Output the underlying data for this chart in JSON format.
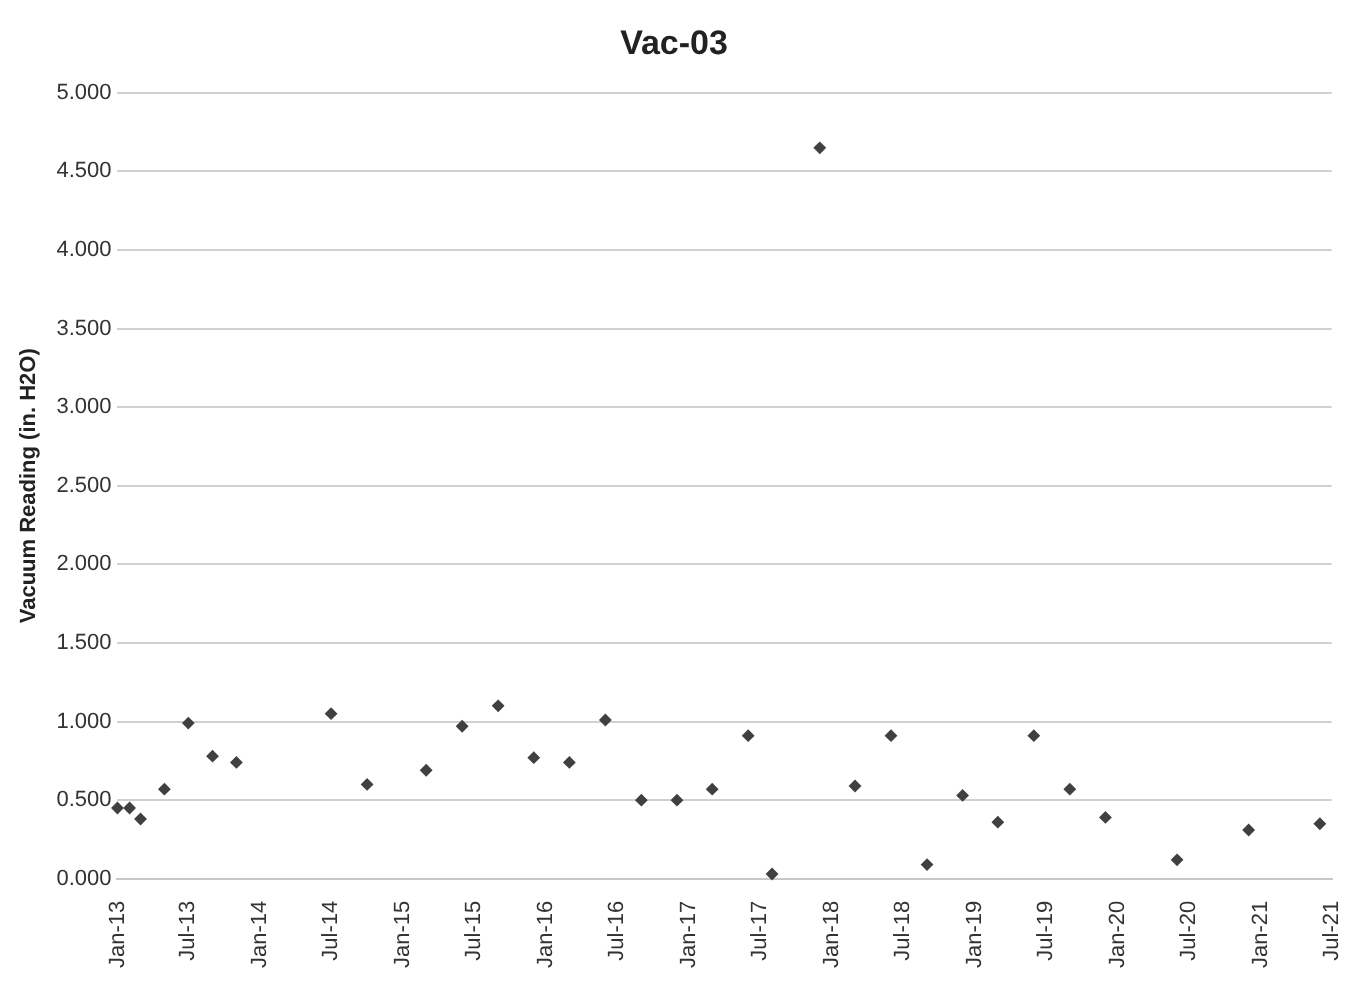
{
  "chart_data": {
    "type": "scatter",
    "title": "Vac-03",
    "ylabel": "Vacuum Reading (in. H2O)",
    "x": [
      "2013-01",
      "2013-02",
      "2013-03",
      "2013-05",
      "2013-07",
      "2013-09",
      "2013-11",
      "2014-07",
      "2014-10",
      "2015-03",
      "2015-06",
      "2015-09",
      "2015-12",
      "2016-03",
      "2016-06",
      "2016-09",
      "2016-12",
      "2017-03",
      "2017-06",
      "2017-08",
      "2017-12",
      "2018-03",
      "2018-06",
      "2018-09",
      "2018-12",
      "2019-03",
      "2019-06",
      "2019-09",
      "2019-12",
      "2020-06",
      "2020-12",
      "2021-06"
    ],
    "series": [
      {
        "color": "#404040",
        "values": [
          0.45,
          0.45,
          0.38,
          0.57,
          0.99,
          0.78,
          0.74,
          1.05,
          0.6,
          0.69,
          0.97,
          1.1,
          0.77,
          0.74,
          1.01,
          0.5,
          0.5,
          0.57,
          0.91,
          0.03,
          4.65,
          0.59,
          0.91,
          0.09,
          0.53,
          0.36,
          0.91,
          0.57,
          0.39,
          0.12,
          0.31,
          0.35
        ]
      }
    ],
    "xlim": [
      "2013-01",
      "2021-07"
    ],
    "xticks": [
      {
        "value": "2013-01",
        "label": "Jan-13"
      },
      {
        "value": "2013-07",
        "label": "Jul-13"
      },
      {
        "value": "2014-01",
        "label": "Jan-14"
      },
      {
        "value": "2014-07",
        "label": "Jul-14"
      },
      {
        "value": "2015-01",
        "label": "Jan-15"
      },
      {
        "value": "2015-07",
        "label": "Jul-15"
      },
      {
        "value": "2016-01",
        "label": "Jan-16"
      },
      {
        "value": "2016-07",
        "label": "Jul-16"
      },
      {
        "value": "2017-01",
        "label": "Jan-17"
      },
      {
        "value": "2017-07",
        "label": "Jul-17"
      },
      {
        "value": "2018-01",
        "label": "Jan-18"
      },
      {
        "value": "2018-07",
        "label": "Jul-18"
      },
      {
        "value": "2019-01",
        "label": "Jan-19"
      },
      {
        "value": "2019-07",
        "label": "Jul-19"
      },
      {
        "value": "2020-01",
        "label": "Jan-20"
      },
      {
        "value": "2020-07",
        "label": "Jul-20"
      },
      {
        "value": "2021-01",
        "label": "Jan-21"
      },
      {
        "value": "2021-07",
        "label": "Jul-21"
      }
    ],
    "ylim": [
      0,
      5
    ],
    "yticks": [
      {
        "value": 0,
        "label": "0.000"
      },
      {
        "value": 0.5,
        "label": "0.500"
      },
      {
        "value": 1,
        "label": "1.000"
      },
      {
        "value": 1.5,
        "label": "1.500"
      },
      {
        "value": 2,
        "label": "2.000"
      },
      {
        "value": 2.5,
        "label": "2.500"
      },
      {
        "value": 3,
        "label": "3.000"
      },
      {
        "value": 3.5,
        "label": "3.500"
      },
      {
        "value": 4,
        "label": "4.000"
      },
      {
        "value": 4.5,
        "label": "4.500"
      },
      {
        "value": 5,
        "label": "5.000"
      }
    ],
    "grid": "y",
    "legend": false,
    "marker": "diamond"
  }
}
